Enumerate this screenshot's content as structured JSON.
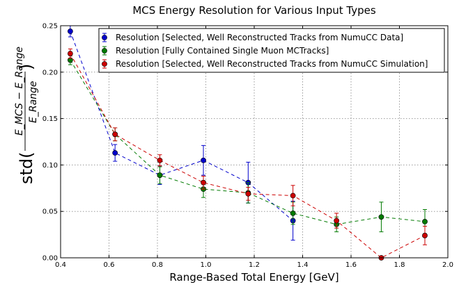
{
  "chart_data": {
    "type": "scatter",
    "title": "MCS Energy Resolution for Various Input Types",
    "xlabel": "Range-Based Total Energy [GeV]",
    "ylabel_prefix": "std(",
    "ylabel_suffix": ")",
    "ylabel_numerator": "E_MCS − E_Range",
    "ylabel_denominator": "E_Range",
    "xlim": [
      0.4,
      2.0
    ],
    "ylim": [
      0.0,
      0.25
    ],
    "xticks": [
      "0.4",
      "0.6",
      "0.8",
      "1.0",
      "1.2",
      "1.4",
      "1.6",
      "1.8",
      "2.0"
    ],
    "yticks": [
      "0.00",
      "0.05",
      "0.10",
      "0.15",
      "0.20",
      "0.25"
    ],
    "grid": true,
    "legend_position": "top-right",
    "series": [
      {
        "name": "Resolution [Selected, Well Reconstructed Tracks from NumuCC Data]",
        "color": "#0000cc",
        "x": [
          0.44,
          0.625,
          0.81,
          0.99,
          1.175,
          1.36
        ],
        "y": [
          0.244,
          0.113,
          0.089,
          0.105,
          0.081,
          0.04
        ],
        "err": [
          0.006,
          0.009,
          0.01,
          0.016,
          0.022,
          0.021
        ]
      },
      {
        "name": "Resolution [Fully Contained Single Muon MCTracks]",
        "color": "#007a00",
        "x": [
          0.44,
          0.625,
          0.81,
          0.99,
          1.175,
          1.36,
          1.54,
          1.725,
          1.905
        ],
        "y": [
          0.213,
          0.133,
          0.089,
          0.074,
          0.07,
          0.048,
          0.036,
          0.044,
          0.039
        ],
        "err": [
          0.005,
          0.007,
          0.009,
          0.009,
          0.011,
          0.012,
          0.008,
          0.016,
          0.013
        ]
      },
      {
        "name": "Resolution [Selected, Well Reconstructed Tracks from NumuCC Simulation]",
        "color": "#cc0000",
        "x": [
          0.44,
          0.625,
          0.81,
          0.99,
          1.175,
          1.36,
          1.54,
          1.725,
          1.905
        ],
        "y": [
          0.22,
          0.133,
          0.105,
          0.081,
          0.069,
          0.067,
          0.04,
          0.0,
          0.024
        ],
        "err": [
          0.005,
          0.007,
          0.006,
          0.007,
          0.007,
          0.011,
          0.008,
          0.0,
          0.01
        ]
      }
    ]
  }
}
